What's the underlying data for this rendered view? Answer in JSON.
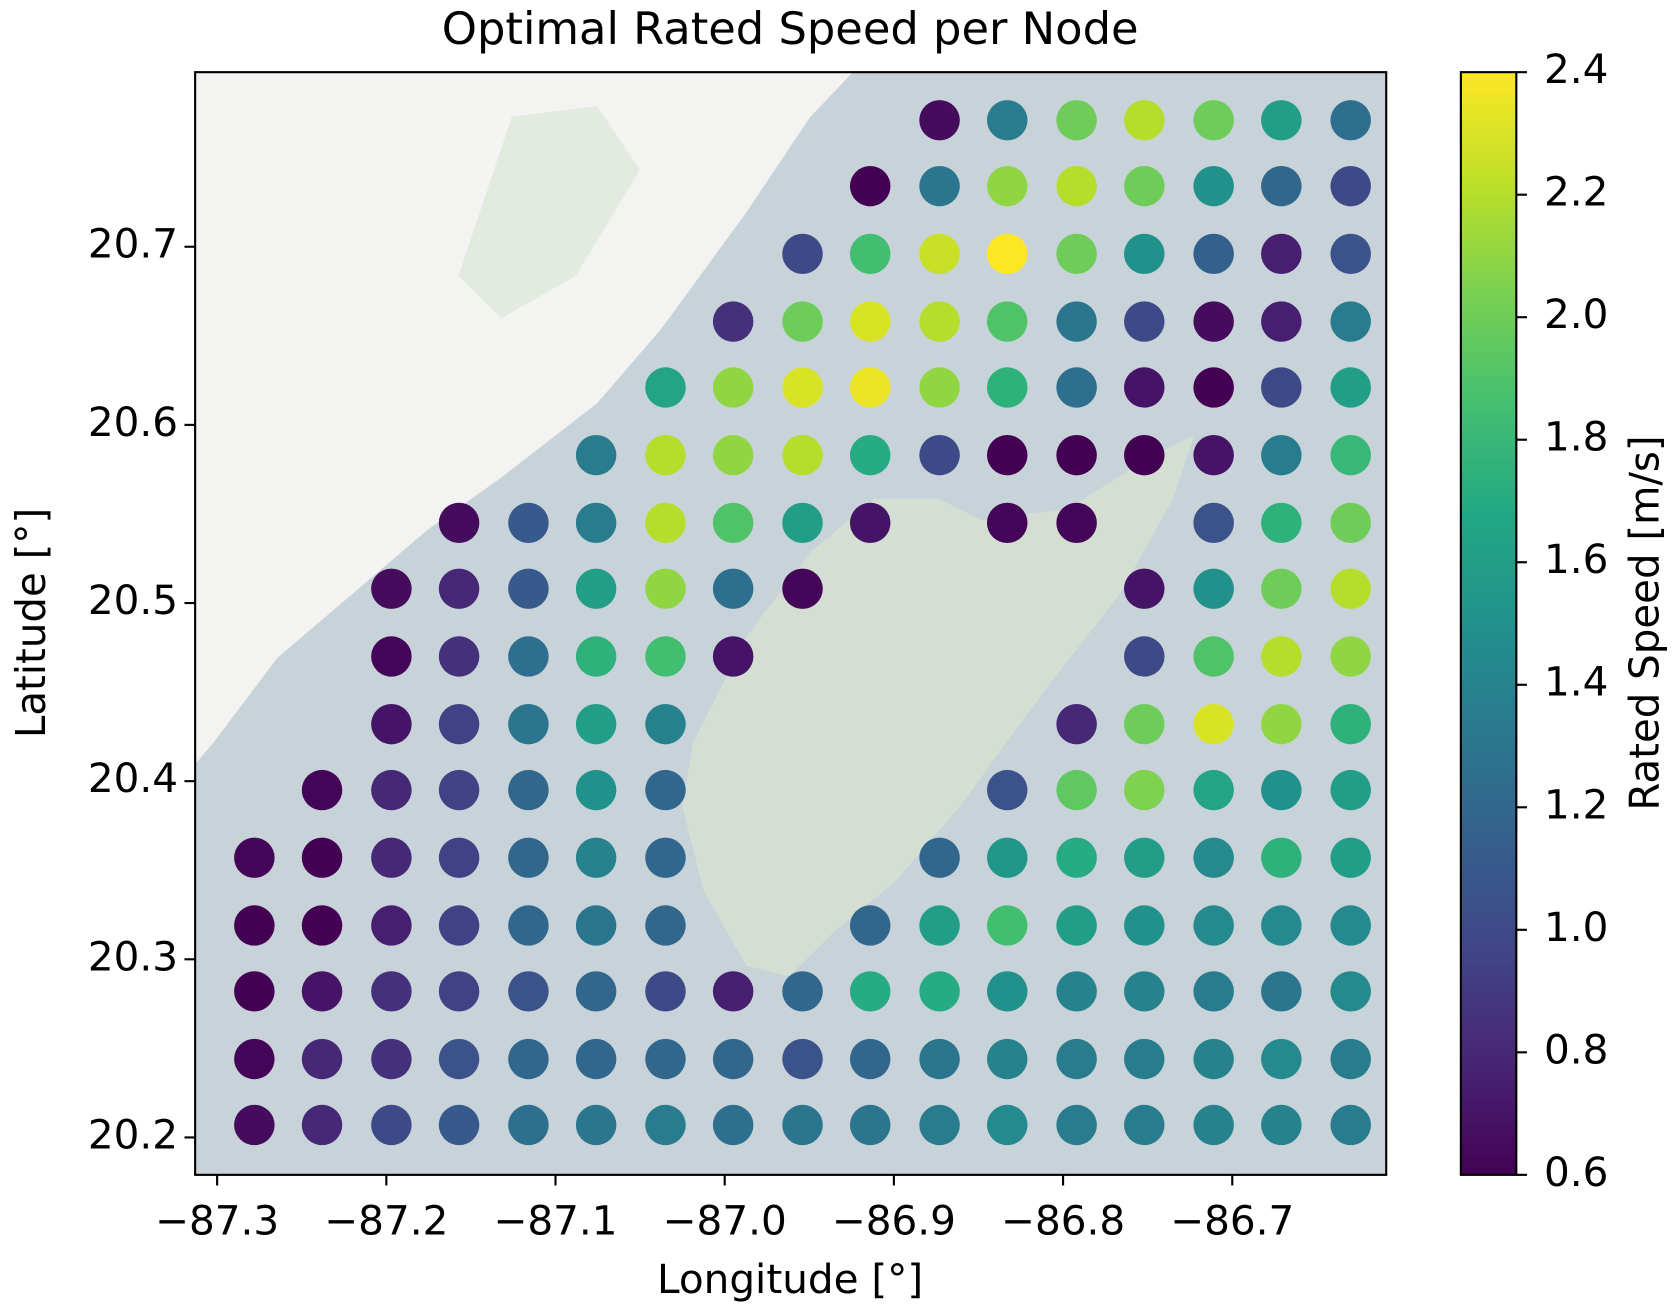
{
  "chart_data": {
    "type": "scatter",
    "title": "Optimal Rated Speed per Node",
    "xlabel": "Longitude [°]",
    "ylabel": "Latitude [°]",
    "colorbar_label": "Rated Speed [m/s]",
    "colormap": "viridis",
    "xlim": [
      -87.313,
      -86.609
    ],
    "ylim": [
      20.179,
      20.798
    ],
    "clim": [
      0.6,
      2.4
    ],
    "xticks": [
      {
        "value": -87.3,
        "label": "−87.3"
      },
      {
        "value": -87.2,
        "label": "−87.2"
      },
      {
        "value": -87.1,
        "label": "−87.1"
      },
      {
        "value": -87.0,
        "label": "−87.0"
      },
      {
        "value": -86.9,
        "label": "−86.9"
      },
      {
        "value": -86.8,
        "label": "−86.8"
      },
      {
        "value": -86.7,
        "label": "−86.7"
      }
    ],
    "yticks": [
      20.2,
      20.3,
      20.4,
      20.5,
      20.6,
      20.7
    ],
    "cticks": [
      0.6,
      0.8,
      {
        "value": 1.0,
        "label": "1.0"
      },
      1.2,
      1.4,
      1.6,
      1.8,
      {
        "value": 2.0,
        "label": "2.0"
      },
      2.2,
      2.4
    ],
    "x": [
      -87.278,
      -87.238,
      -87.197,
      -87.157,
      -87.116,
      -87.076,
      -87.035,
      -86.995,
      -86.954,
      -86.914,
      -86.873,
      -86.833,
      -86.792,
      -86.752,
      -86.711,
      -86.671,
      -86.63,
      -87.278,
      -87.238,
      -87.197,
      -87.157,
      -87.116,
      -87.076,
      -87.035,
      -86.995,
      -86.954,
      -86.914,
      -86.873,
      -86.833,
      -86.792,
      -86.752,
      -86.711,
      -86.671,
      -86.63,
      -87.278,
      -87.238,
      -87.197,
      -87.157,
      -87.116,
      -87.076,
      -87.035,
      -86.995,
      -86.954,
      -86.914,
      -86.873,
      -86.833,
      -86.792,
      -86.752,
      -86.711,
      -86.671,
      -86.63,
      -87.278,
      -87.238,
      -87.197,
      -87.157,
      -87.116,
      -87.076,
      -87.035,
      -86.914,
      -86.873,
      -86.833,
      -86.792,
      -86.752,
      -86.711,
      -86.671,
      -86.63,
      -87.278,
      -87.238,
      -87.197,
      -87.157,
      -87.116,
      -87.076,
      -87.035,
      -86.873,
      -86.833,
      -86.792,
      -86.752,
      -86.711,
      -86.671,
      -86.63,
      -87.238,
      -87.197,
      -87.157,
      -87.116,
      -87.076,
      -87.035,
      -86.833,
      -86.792,
      -86.752,
      -86.711,
      -86.671,
      -86.63,
      -87.197,
      -87.157,
      -87.116,
      -87.076,
      -87.035,
      -86.792,
      -86.752,
      -86.711,
      -86.671,
      -86.63,
      -87.197,
      -87.157,
      -87.116,
      -87.076,
      -87.035,
      -86.995,
      -86.752,
      -86.711,
      -86.671,
      -86.63,
      -87.197,
      -87.157,
      -87.116,
      -87.076,
      -87.035,
      -86.995,
      -86.954,
      -86.752,
      -86.711,
      -86.671,
      -86.63,
      -87.157,
      -87.116,
      -87.076,
      -87.035,
      -86.995,
      -86.954,
      -86.914,
      -86.833,
      -86.792,
      -86.711,
      -86.671,
      -86.63,
      -87.076,
      -87.035,
      -86.995,
      -86.954,
      -86.914,
      -86.873,
      -86.833,
      -86.792,
      -86.752,
      -86.711,
      -86.671,
      -86.63,
      -87.035,
      -86.995,
      -86.954,
      -86.914,
      -86.873,
      -86.833,
      -86.792,
      -86.752,
      -86.711,
      -86.671,
      -86.63,
      -86.995,
      -86.954,
      -86.914,
      -86.873,
      -86.833,
      -86.792,
      -86.752,
      -86.711,
      -86.671,
      -86.63,
      -86.954,
      -86.914,
      -86.873,
      -86.833,
      -86.792,
      -86.752,
      -86.711,
      -86.671,
      -86.63,
      -86.914,
      -86.873,
      -86.833,
      -86.792,
      -86.752,
      -86.711,
      -86.671,
      -86.63,
      -86.873,
      -86.833,
      -86.792,
      -86.752,
      -86.711,
      -86.671,
      -86.63
    ],
    "y": [
      20.207,
      20.207,
      20.207,
      20.207,
      20.207,
      20.207,
      20.207,
      20.207,
      20.207,
      20.207,
      20.207,
      20.207,
      20.207,
      20.207,
      20.207,
      20.207,
      20.207,
      20.244,
      20.244,
      20.244,
      20.244,
      20.244,
      20.244,
      20.244,
      20.244,
      20.244,
      20.244,
      20.244,
      20.244,
      20.244,
      20.244,
      20.244,
      20.244,
      20.244,
      20.282,
      20.282,
      20.282,
      20.282,
      20.282,
      20.282,
      20.282,
      20.282,
      20.282,
      20.282,
      20.282,
      20.282,
      20.282,
      20.282,
      20.282,
      20.282,
      20.282,
      20.319,
      20.319,
      20.319,
      20.319,
      20.319,
      20.319,
      20.319,
      20.319,
      20.319,
      20.319,
      20.319,
      20.319,
      20.319,
      20.319,
      20.319,
      20.357,
      20.357,
      20.357,
      20.357,
      20.357,
      20.357,
      20.357,
      20.357,
      20.357,
      20.357,
      20.357,
      20.357,
      20.357,
      20.357,
      20.395,
      20.395,
      20.395,
      20.395,
      20.395,
      20.395,
      20.395,
      20.395,
      20.395,
      20.395,
      20.395,
      20.395,
      20.432,
      20.432,
      20.432,
      20.432,
      20.432,
      20.432,
      20.432,
      20.432,
      20.432,
      20.432,
      20.47,
      20.47,
      20.47,
      20.47,
      20.47,
      20.47,
      20.47,
      20.47,
      20.47,
      20.47,
      20.508,
      20.508,
      20.508,
      20.508,
      20.508,
      20.508,
      20.508,
      20.508,
      20.508,
      20.508,
      20.508,
      20.545,
      20.545,
      20.545,
      20.545,
      20.545,
      20.545,
      20.545,
      20.545,
      20.545,
      20.545,
      20.545,
      20.545,
      20.583,
      20.583,
      20.583,
      20.583,
      20.583,
      20.583,
      20.583,
      20.583,
      20.583,
      20.583,
      20.583,
      20.583,
      20.621,
      20.621,
      20.621,
      20.621,
      20.621,
      20.621,
      20.621,
      20.621,
      20.621,
      20.621,
      20.621,
      20.658,
      20.658,
      20.658,
      20.658,
      20.658,
      20.658,
      20.658,
      20.658,
      20.658,
      20.658,
      20.696,
      20.696,
      20.696,
      20.696,
      20.696,
      20.696,
      20.696,
      20.696,
      20.696,
      20.734,
      20.734,
      20.734,
      20.734,
      20.734,
      20.734,
      20.734,
      20.734,
      20.771,
      20.771,
      20.771,
      20.771,
      20.771,
      20.771,
      20.771
    ],
    "values": [
      0.65,
      0.8,
      1.0,
      1.1,
      1.25,
      1.3,
      1.35,
      1.25,
      1.3,
      1.3,
      1.35,
      1.45,
      1.35,
      1.35,
      1.4,
      1.4,
      1.35,
      0.62,
      0.8,
      0.85,
      1.05,
      1.2,
      1.2,
      1.2,
      1.2,
      1.05,
      1.2,
      1.3,
      1.4,
      1.35,
      1.35,
      1.4,
      1.45,
      1.35,
      0.6,
      0.7,
      0.85,
      0.95,
      1.05,
      1.2,
      1.0,
      0.75,
      1.2,
      1.7,
      1.7,
      1.5,
      1.4,
      1.4,
      1.35,
      1.3,
      1.45,
      0.6,
      0.6,
      0.75,
      0.95,
      1.2,
      1.3,
      1.2,
      1.2,
      1.6,
      1.85,
      1.6,
      1.5,
      1.45,
      1.45,
      1.45,
      0.62,
      0.6,
      0.8,
      0.95,
      1.2,
      1.4,
      1.2,
      1.2,
      1.55,
      1.7,
      1.6,
      1.45,
      1.75,
      1.6,
      0.62,
      0.8,
      0.95,
      1.2,
      1.5,
      1.2,
      1.05,
      1.95,
      2.05,
      1.65,
      1.5,
      1.6,
      0.7,
      0.95,
      1.3,
      1.6,
      1.4,
      0.8,
      2.0,
      2.3,
      2.1,
      1.75,
      0.62,
      0.85,
      1.25,
      1.75,
      1.85,
      0.7,
      1.0,
      1.9,
      2.2,
      2.1,
      0.65,
      0.8,
      1.1,
      1.6,
      2.1,
      1.25,
      0.62,
      0.7,
      1.5,
      2.0,
      2.2,
      0.65,
      1.1,
      1.35,
      2.2,
      1.9,
      1.6,
      0.7,
      0.62,
      0.62,
      1.05,
      1.75,
      2.0,
      1.35,
      2.2,
      2.1,
      2.2,
      1.7,
      1.0,
      0.6,
      0.6,
      0.6,
      0.7,
      1.35,
      1.8,
      1.65,
      2.1,
      2.3,
      2.35,
      2.1,
      1.75,
      1.25,
      0.7,
      0.6,
      1.0,
      1.6,
      0.85,
      2.0,
      2.3,
      2.2,
      1.9,
      1.3,
      1.0,
      0.65,
      0.75,
      1.35,
      1.0,
      1.85,
      2.25,
      2.4,
      2.0,
      1.5,
      1.15,
      0.75,
      1.05,
      0.6,
      1.3,
      2.1,
      2.2,
      2.0,
      1.5,
      1.2,
      1.0,
      0.65,
      1.35,
      2.0,
      2.2,
      2.0,
      1.6,
      1.25
    ]
  }
}
